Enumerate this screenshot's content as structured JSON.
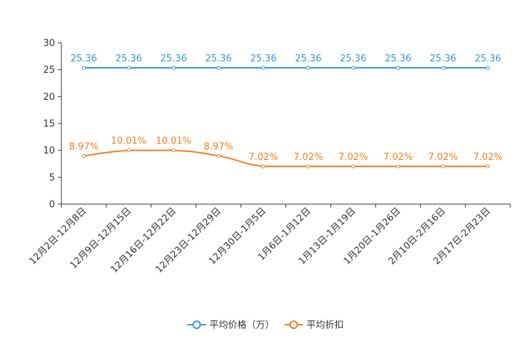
{
  "chart_data": {
    "type": "line",
    "title": "",
    "xlabel": "",
    "ylabel": "",
    "ylim": [
      0,
      30
    ],
    "yticks": [
      0,
      5,
      10,
      15,
      20,
      25,
      30
    ],
    "grid": false,
    "legend_position": "bottom-center",
    "categories": [
      "12月2日-12月8日",
      "12月9日-12月15日",
      "12月16日-12月22日",
      "12月23日-12月29日",
      "12月30日-1月5日",
      "1月6日-1月12日",
      "1月13日-1月19日",
      "1月20日-1月26日",
      "2月10日-2月16日",
      "2月17日-2月23日"
    ],
    "series": [
      {
        "name": "平均价格（万）",
        "color": "#3398DB",
        "values": [
          25.36,
          25.36,
          25.36,
          25.36,
          25.36,
          25.36,
          25.36,
          25.36,
          25.36,
          25.36
        ],
        "labels": [
          "25.36",
          "25.36",
          "25.36",
          "25.36",
          "25.36",
          "25.36",
          "25.36",
          "25.36",
          "25.36",
          "25.36"
        ]
      },
      {
        "name": "平均折扣",
        "color": "#F57C1F",
        "values": [
          8.97,
          10.01,
          10.01,
          8.97,
          7.02,
          7.02,
          7.02,
          7.02,
          7.02,
          7.02
        ],
        "labels": [
          "8.97%",
          "10.01%",
          "10.01%",
          "8.97%",
          "7.02%",
          "7.02%",
          "7.02%",
          "7.02%",
          "7.02%",
          "7.02%"
        ]
      }
    ]
  }
}
